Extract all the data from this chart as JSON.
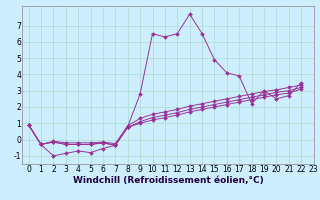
{
  "xlabel": "Windchill (Refroidissement éolien,°C)",
  "bg_color": "#cceeff",
  "line_color": "#993399",
  "xlim": [
    -0.5,
    23
  ],
  "ylim": [
    -1.5,
    8.2
  ],
  "xticks": [
    0,
    1,
    2,
    3,
    4,
    5,
    6,
    7,
    8,
    9,
    10,
    11,
    12,
    13,
    14,
    15,
    16,
    17,
    18,
    19,
    20,
    21,
    22,
    23
  ],
  "yticks": [
    -1,
    0,
    1,
    2,
    3,
    4,
    5,
    6,
    7
  ],
  "x_vals": [
    0,
    1,
    2,
    3,
    4,
    5,
    6,
    7,
    8,
    9,
    10,
    11,
    12,
    13,
    14,
    15,
    16,
    17,
    18,
    19,
    20,
    21,
    22
  ],
  "series": [
    [
      0.9,
      -0.3,
      -1.0,
      -0.85,
      -0.7,
      -0.8,
      -0.55,
      -0.35,
      0.8,
      2.8,
      6.5,
      6.3,
      6.5,
      7.7,
      6.5,
      4.9,
      4.1,
      3.9,
      2.2,
      3.0,
      2.5,
      2.7,
      3.5
    ],
    [
      0.9,
      -0.3,
      -0.1,
      -0.2,
      -0.2,
      -0.2,
      -0.15,
      -0.25,
      0.85,
      1.3,
      1.55,
      1.7,
      1.85,
      2.05,
      2.2,
      2.35,
      2.5,
      2.65,
      2.8,
      2.95,
      3.05,
      3.2,
      3.35
    ],
    [
      0.9,
      -0.3,
      -0.15,
      -0.3,
      -0.3,
      -0.3,
      -0.2,
      -0.35,
      0.75,
      1.1,
      1.35,
      1.5,
      1.65,
      1.85,
      2.0,
      2.15,
      2.3,
      2.45,
      2.6,
      2.75,
      2.9,
      3.0,
      3.2
    ],
    [
      0.9,
      -0.3,
      -0.15,
      -0.3,
      -0.3,
      -0.3,
      -0.2,
      -0.35,
      0.75,
      1.0,
      1.2,
      1.35,
      1.5,
      1.7,
      1.85,
      2.0,
      2.15,
      2.3,
      2.45,
      2.6,
      2.75,
      2.85,
      3.1
    ]
  ],
  "grid_color": "#aaddcc",
  "tick_fontsize": 5.5,
  "xlabel_fontsize": 6.5,
  "linewidth": 0.7,
  "markersize": 2.0
}
